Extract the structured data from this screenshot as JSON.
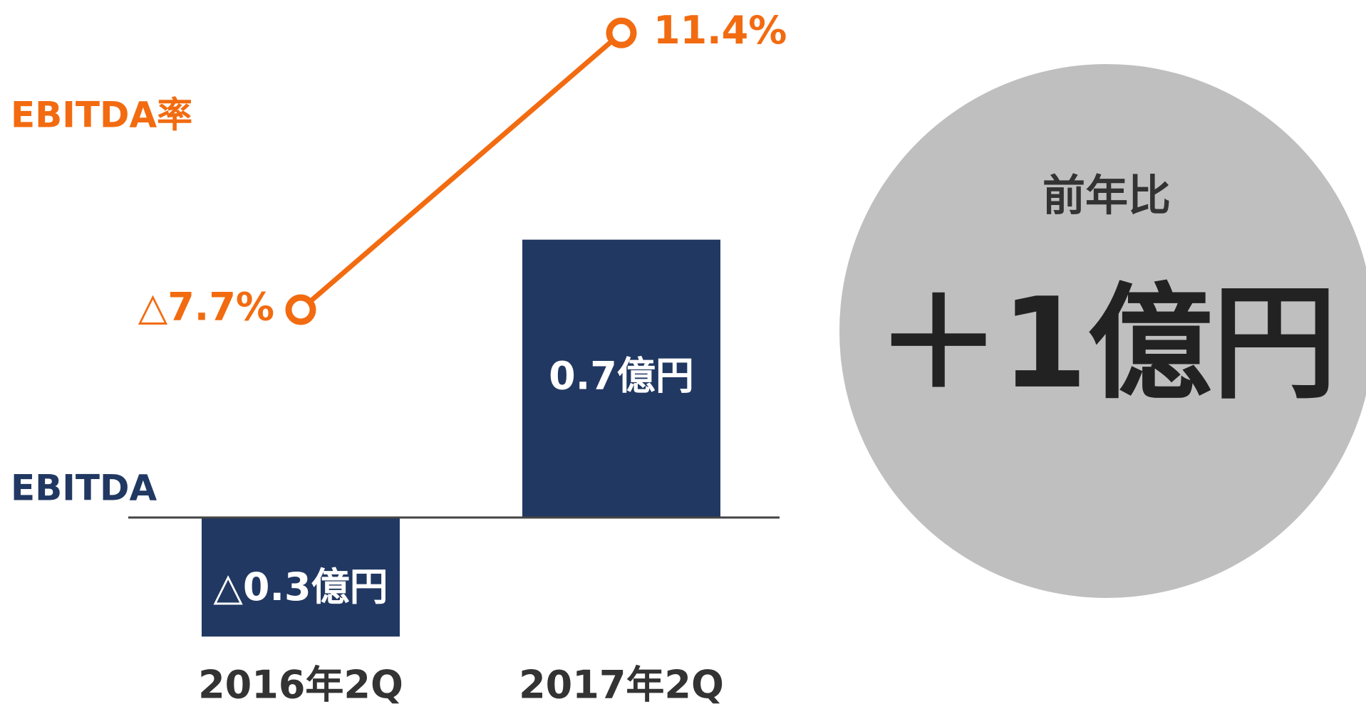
{
  "chart_data": {
    "type": "bar",
    "categories": [
      "2016年2Q",
      "2017年2Q"
    ],
    "series": [
      {
        "name": "EBITDA",
        "type": "bar",
        "color": "#213862",
        "values": [
          -0.3,
          0.7
        ],
        "value_labels": [
          "△0.3億円",
          "0.7億円"
        ]
      },
      {
        "name": "EBITDA率",
        "type": "line",
        "axis": "y2",
        "color": "#f26b10",
        "values": [
          -7.7,
          11.4
        ],
        "value_labels": [
          "△7.7%",
          "11.4%"
        ]
      }
    ],
    "ylim": [
      -0.4,
      1.25
    ],
    "y2lim": [
      -33,
      12.2
    ],
    "annotation": {
      "title": "前年比",
      "text": "＋1億円",
      "color": "#bfbfbf"
    }
  }
}
